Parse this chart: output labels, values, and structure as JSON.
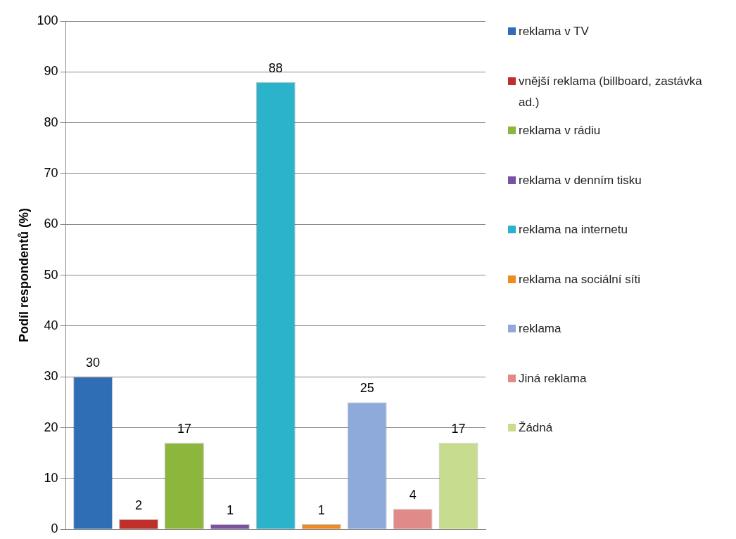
{
  "chart_data": {
    "type": "bar",
    "ylabel": "Podíl respondentů (%)",
    "categories": [
      null
    ],
    "series": [
      {
        "name": "reklama v TV",
        "color": "#2f6db5",
        "values": [
          30
        ]
      },
      {
        "name": "vnější reklama (billboard, zastávka ad.)",
        "color": "#c0302b",
        "values": [
          2
        ]
      },
      {
        "name": "reklama v rádiu",
        "color": "#8db63c",
        "values": [
          17
        ]
      },
      {
        "name": "reklama v denním tisku",
        "color": "#7b52a3",
        "values": [
          1
        ]
      },
      {
        "name": "reklama na internetu",
        "color": "#2cb3cc",
        "values": [
          88
        ]
      },
      {
        "name": "reklama na sociální síti",
        "color": "#f08c1e",
        "values": [
          1
        ]
      },
      {
        "name": "reklama",
        "color": "#8eaadb",
        "values": [
          25
        ]
      },
      {
        "name": "Jiná reklama",
        "color": "#e08a8a",
        "values": [
          4
        ]
      },
      {
        "name": "Žádná",
        "color": "#c7dc8e",
        "values": [
          17
        ]
      }
    ],
    "ylim": [
      0,
      100
    ],
    "yticks": [
      0,
      10,
      20,
      30,
      40,
      50,
      60,
      70,
      80,
      90,
      100
    ],
    "grid": "y",
    "legend": "right",
    "data_labels": true
  }
}
